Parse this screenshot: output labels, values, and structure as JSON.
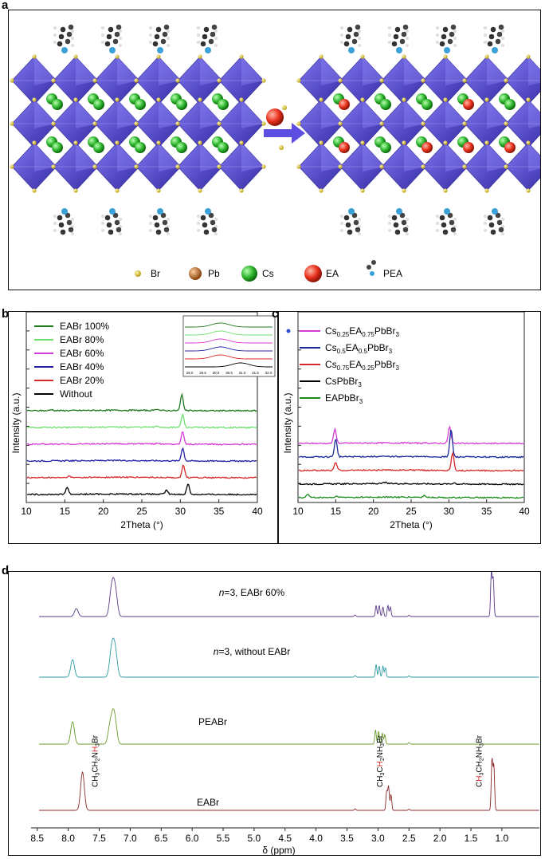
{
  "panel_a": {
    "letter": "a",
    "legend": [
      {
        "symbol": "Br",
        "label": "Br",
        "color": "#e4d03c"
      },
      {
        "symbol": "Pb",
        "label": "Pb",
        "color": "#c9681c"
      },
      {
        "symbol": "Cs",
        "label": "Cs",
        "color": "#2fb52f"
      },
      {
        "symbol": "EA",
        "label": "EA",
        "color": "#e8301c"
      },
      {
        "symbol": "PEA",
        "label": "PEA",
        "color": "#444444"
      }
    ],
    "colors": {
      "octahedra": "#4b3fd0",
      "arrow": "#5b4ee0",
      "pea": "#3a3a3a",
      "n_atom": "#3aa0d8"
    }
  },
  "panel_b": {
    "letter": "b",
    "chart_data": {
      "type": "line",
      "xlabel": "2Theta (°)",
      "ylabel": "Intensity (a.u.)",
      "xlim": [
        10,
        40
      ],
      "xticks": [
        "10",
        "15",
        "20",
        "25",
        "30",
        "35",
        "40"
      ],
      "series": [
        {
          "name": "EABr 100%",
          "color": "#1d7a1d",
          "offset": 5,
          "peaks": [
            [
              30.2,
              2.0
            ],
            [
              13.3,
              0.15
            ],
            [
              27.0,
              0.2
            ]
          ]
        },
        {
          "name": "EABr 80%",
          "color": "#6fe06f",
          "offset": 4,
          "peaks": [
            [
              30.3,
              1.6
            ],
            [
              27.0,
              0.15
            ]
          ]
        },
        {
          "name": "EABr 60%",
          "color": "#d63ad6",
          "offset": 3,
          "peaks": [
            [
              30.3,
              1.6
            ],
            [
              27.0,
              0.15
            ]
          ]
        },
        {
          "name": "EABr 40%",
          "color": "#2020a0",
          "offset": 2,
          "peaks": [
            [
              30.3,
              1.6
            ]
          ]
        },
        {
          "name": "EABr 20%",
          "color": "#d62828",
          "offset": 1,
          "peaks": [
            [
              30.4,
              1.6
            ],
            [
              15.5,
              0.15
            ]
          ]
        },
        {
          "name": "Without",
          "color": "#000000",
          "offset": 0,
          "peaks": [
            [
              15.3,
              0.9
            ],
            [
              28.2,
              0.5
            ],
            [
              31.0,
              1.3
            ]
          ]
        }
      ],
      "inset": {
        "xticks": [
          "29.0",
          "29.5",
          "30.0",
          "30.5",
          "31.0",
          "31.5",
          "32.0"
        ]
      }
    }
  },
  "panel_c": {
    "letter": "c",
    "chart_data": {
      "type": "line",
      "xlabel": "2Theta (°)",
      "ylabel": "Intensity (a.u.)",
      "xlim": [
        10,
        40
      ],
      "xticks": [
        "10",
        "15",
        "20",
        "25",
        "30",
        "35",
        "40"
      ],
      "series": [
        {
          "name": "Cs0.25EA0.75PbBr3",
          "label_parts": [
            "Cs",
            "0.25",
            "EA",
            "0.75",
            "PbBr",
            "3"
          ],
          "color": "#d63ad6",
          "offset": 4,
          "peaks": [
            [
              14.9,
              1.6
            ],
            [
              30.1,
              1.9
            ]
          ]
        },
        {
          "name": "Cs0.5EA0.5PbBr3",
          "label_parts": [
            "Cs",
            "0.5",
            "EA",
            "0.5",
            "PbBr",
            "3"
          ],
          "color": "#1a2a9a",
          "offset": 3,
          "peaks": [
            [
              15.0,
              2.0
            ],
            [
              30.3,
              3.1
            ]
          ]
        },
        {
          "name": "Cs0.75EA0.25PbBr3",
          "label_parts": [
            "Cs",
            "0.75",
            "EA",
            "0.25",
            "PbBr",
            "3"
          ],
          "color": "#d62828",
          "offset": 2,
          "peaks": [
            [
              15.0,
              0.9
            ],
            [
              30.5,
              2.0
            ]
          ]
        },
        {
          "name": "CsPbBr3",
          "label_parts": [
            "CsPbBr",
            "3",
            "",
            "",
            "",
            ""
          ],
          "color": "#000000",
          "offset": 1,
          "peaks": [
            [
              21.5,
              0.15
            ],
            [
              30.7,
              0.15
            ]
          ]
        },
        {
          "name": "EAPbBr3",
          "label_parts": [
            "EAPbBr",
            "3",
            "",
            "",
            "",
            ""
          ],
          "color": "#1d8a1d",
          "offset": 0,
          "peaks": [
            [
              11.3,
              0.4
            ],
            [
              15.2,
              0.15
            ],
            [
              26.8,
              0.2
            ]
          ]
        }
      ]
    }
  },
  "panel_d": {
    "letter": "d",
    "chart_data": {
      "type": "line",
      "xlabel": "δ (ppm)",
      "xlim": [
        8.6,
        0.6
      ],
      "xticks": [
        "8.5",
        "8.0",
        "7.5",
        "7.0",
        "6.5",
        "6.0",
        "5.5",
        "5.0",
        "4.5",
        "4.0",
        "3.5",
        "3.0",
        "2.5",
        "2.0",
        "1.5",
        "1.0"
      ],
      "series": [
        {
          "name": "n=3, EABr 60%",
          "label_italic": "n",
          "label_rest": "=3, EABr 60%",
          "color": "#5a3a8a",
          "offset": 3,
          "peaks": [
            [
              7.87,
              0.25
            ],
            [
              7.31,
              0.6
            ],
            [
              7.27,
              0.75
            ],
            [
              7.23,
              0.55
            ],
            [
              3.03,
              0.35
            ],
            [
              2.98,
              0.35
            ],
            [
              2.92,
              0.3
            ],
            [
              2.84,
              0.35
            ],
            [
              2.8,
              0.3
            ],
            [
              1.17,
              1.4
            ],
            [
              1.14,
              1.2
            ],
            [
              3.37,
              0.05
            ],
            [
              2.5,
              0.04
            ]
          ]
        },
        {
          "name": "n=3, without EABr",
          "label_italic": "n",
          "label_rest": "=3, without EABr",
          "color": "#2a9aa0",
          "offset": 2,
          "peaks": [
            [
              7.93,
              0.55
            ],
            [
              7.31,
              0.6
            ],
            [
              7.27,
              0.75
            ],
            [
              7.23,
              0.55
            ],
            [
              3.03,
              0.4
            ],
            [
              2.98,
              0.35
            ],
            [
              2.92,
              0.35
            ],
            [
              2.88,
              0.3
            ],
            [
              3.37,
              0.05
            ],
            [
              2.5,
              0.04
            ]
          ]
        },
        {
          "name": "PEABr",
          "label_italic": "",
          "label_rest": "PEABr",
          "color": "#6a9a2a",
          "offset": 1,
          "peaks": [
            [
              7.93,
              0.7
            ],
            [
              7.33,
              0.5
            ],
            [
              7.28,
              0.75
            ],
            [
              7.24,
              0.55
            ],
            [
              3.04,
              0.45
            ],
            [
              2.99,
              0.4
            ],
            [
              2.93,
              0.35
            ],
            [
              2.89,
              0.3
            ],
            [
              2.5,
              0.05
            ]
          ]
        },
        {
          "name": "EABr",
          "label_italic": "",
          "label_rest": "EABr",
          "color": "#8a2a2a",
          "offset": 0,
          "peaks": [
            [
              7.77,
              1.2
            ],
            [
              2.86,
              0.6
            ],
            [
              2.83,
              0.75
            ],
            [
              2.79,
              0.5
            ],
            [
              1.16,
              1.6
            ],
            [
              1.13,
              1.4
            ],
            [
              3.37,
              0.05
            ],
            [
              2.5,
              0.04
            ]
          ]
        }
      ],
      "annotations": [
        {
          "parts": [
            "CH",
            "3",
            "CH",
            "2",
            "N",
            "H",
            "3",
            "Br"
          ],
          "highlight": 5,
          "x": 7.58
        },
        {
          "parts": [
            "CH",
            "3",
            "C",
            "H",
            "2",
            "NH",
            "3",
            "Br"
          ],
          "highlight": 3,
          "x": 2.98
        },
        {
          "parts": [
            "C",
            "H",
            "3",
            "CH",
            "2",
            "NH",
            "3",
            "Br"
          ],
          "highlight": 1,
          "x": 1.38
        }
      ]
    }
  }
}
